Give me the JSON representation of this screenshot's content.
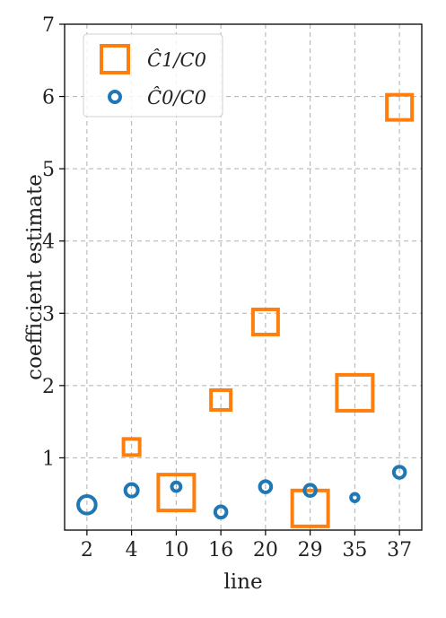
{
  "chart_data": {
    "type": "scatter",
    "title": "",
    "xlabel": "line",
    "ylabel": "coefficient estimate",
    "categories": [
      "2",
      "4",
      "10",
      "16",
      "20",
      "29",
      "35",
      "37"
    ],
    "ylim": [
      0,
      7
    ],
    "yticks": [
      1,
      2,
      3,
      4,
      5,
      6,
      7
    ],
    "grid": true,
    "legend_position": "top-left",
    "series": [
      {
        "name": "Ĉ1/C0",
        "marker": "square",
        "color": "#ff7f0e",
        "values": [
          null,
          1.15,
          0.52,
          1.8,
          2.88,
          0.3,
          1.9,
          5.85
        ],
        "marker_size": [
          null,
          0.9,
          2.0,
          1.1,
          1.4,
          2.0,
          2.0,
          1.4
        ]
      },
      {
        "name": "Ĉ0/C0",
        "marker": "circle",
        "color": "#1f77b4",
        "values": [
          0.35,
          0.55,
          0.6,
          0.25,
          0.6,
          0.55,
          0.45,
          0.8
        ],
        "marker_size": [
          1.4,
          1.0,
          0.7,
          0.9,
          0.9,
          0.9,
          0.6,
          0.9
        ]
      }
    ]
  }
}
